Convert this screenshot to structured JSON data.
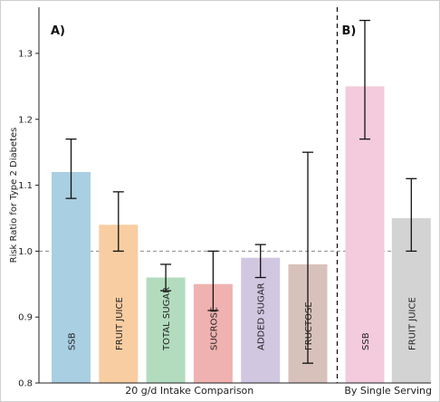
{
  "chart_data": {
    "type": "bar",
    "ylabel": "Risk Ratio for Type 2 Diabetes",
    "xlabel": "",
    "ylim": [
      0.8,
      1.37
    ],
    "yticks": [
      0.8,
      0.9,
      1.0,
      1.1,
      1.2,
      1.3
    ],
    "reference_line": 1.0,
    "panels": [
      {
        "label": "A)",
        "group_label": "20 g/d Intake Comparison",
        "bars": [
          {
            "category": "SSB",
            "value": 1.12,
            "ci_low": 1.08,
            "ci_high": 1.17,
            "color": "#a9cfe2"
          },
          {
            "category": "FRUIT JUICE",
            "value": 1.04,
            "ci_low": 1.0,
            "ci_high": 1.09,
            "color": "#f9cda2"
          },
          {
            "category": "TOTAL SUGAR",
            "value": 0.96,
            "ci_low": 0.94,
            "ci_high": 0.98,
            "color": "#b3dcbe"
          },
          {
            "category": "SUCROSE",
            "value": 0.95,
            "ci_low": 0.91,
            "ci_high": 1.0,
            "color": "#efb2b0"
          },
          {
            "category": "ADDED SUGAR",
            "value": 0.99,
            "ci_low": 0.96,
            "ci_high": 1.01,
            "color": "#d2c7e1"
          },
          {
            "category": "FRUCTOSE",
            "value": 0.98,
            "ci_low": 0.83,
            "ci_high": 1.15,
            "color": "#d9c1bb"
          }
        ]
      },
      {
        "label": "B)",
        "group_label": "By Single Serving",
        "bars": [
          {
            "category": "SSB",
            "value": 1.25,
            "ci_low": 1.17,
            "ci_high": 1.35,
            "color": "#f3cbdc"
          },
          {
            "category": "FRUIT JUICE",
            "value": 1.05,
            "ci_low": 1.0,
            "ci_high": 1.11,
            "color": "#d3d3d3"
          }
        ]
      }
    ]
  }
}
